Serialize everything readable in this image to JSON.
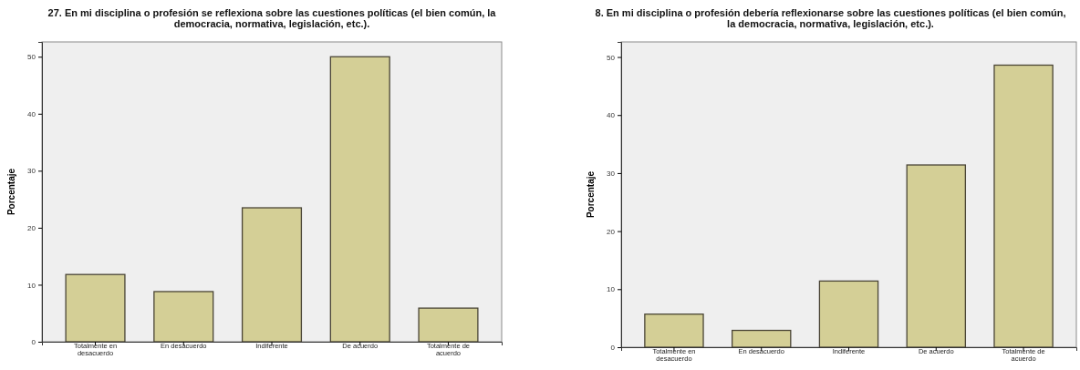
{
  "chart_data": [
    {
      "type": "bar",
      "title": "27. En mi disciplina o profesión se reflexiona sobre las cuestiones políticas (el bien común, la democracia, normativa, legislación, etc.).",
      "ylabel": "Porcentaje",
      "categories": [
        "Totalmente en desacuerdo",
        "En desacuerdo",
        "Indiferente",
        "De acuerdo",
        "Totalmente de acuerdo"
      ],
      "values": [
        11.8,
        8.8,
        23.5,
        50,
        5.9
      ],
      "color": "#d4cf96",
      "ylim": [
        0,
        52.6
      ],
      "yticks": [
        0,
        10,
        20,
        30,
        40,
        50
      ]
    },
    {
      "type": "bar",
      "title": "8. En mi disciplina o profesión debería reflexionarse sobre las cuestiones políticas (el bien común, la democracia, normativa, legislación, etc.).",
      "ylabel": "Porcentaje",
      "categories": [
        "Totalmente en desacuerdo",
        "En desacuerdo",
        "Indiferente",
        "De acuerdo",
        "Totalmente de acuerdo"
      ],
      "values": [
        5.7,
        2.9,
        11.4,
        31.4,
        48.6
      ],
      "color": "#d4cf96",
      "ylim": [
        0,
        52.6
      ],
      "yticks": [
        0,
        10,
        20,
        30,
        40,
        50
      ]
    }
  ]
}
